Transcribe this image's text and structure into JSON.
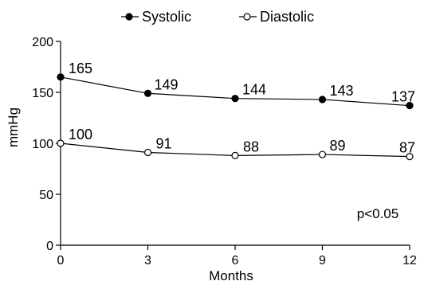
{
  "chart_data": {
    "type": "line",
    "title": "",
    "xlabel": "Months",
    "ylabel": "mmHg",
    "x": [
      0,
      3,
      6,
      9,
      12
    ],
    "xlim": [
      0,
      12
    ],
    "ylim": [
      0,
      200
    ],
    "x_ticks": [
      "0",
      "3",
      "6",
      "9",
      "12"
    ],
    "y_ticks": [
      "0",
      "50",
      "100",
      "150",
      "200"
    ],
    "grid": false,
    "legend_position": "top",
    "annotation": "p<0.05",
    "series": [
      {
        "name": "Systolic",
        "marker": "filled-circle",
        "values": [
          165,
          149,
          144,
          143,
          137
        ],
        "color": "#000000"
      },
      {
        "name": "Diastolic",
        "marker": "open-circle",
        "values": [
          100,
          91,
          88,
          89,
          87
        ],
        "color": "#000000"
      }
    ]
  }
}
